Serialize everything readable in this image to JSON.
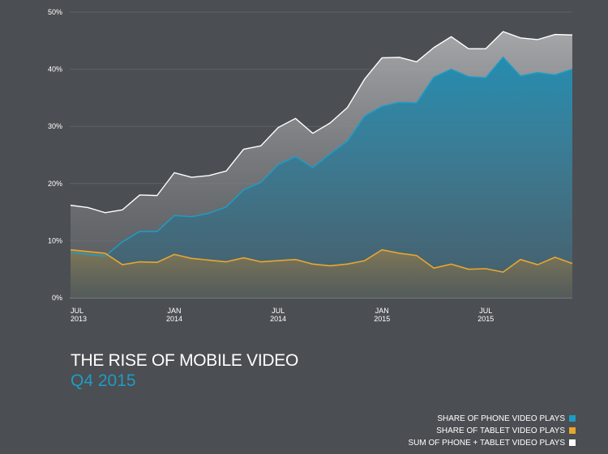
{
  "chart_data": {
    "type": "area",
    "title": "THE RISE OF MOBILE VIDEO",
    "subtitle": "Q4 2015",
    "ylim": [
      0,
      50
    ],
    "y_ticks": [
      "0%",
      "10%",
      "20%",
      "30%",
      "40%",
      "50%"
    ],
    "x_ticks": [
      {
        "month": "JUL",
        "year": "2013"
      },
      {
        "month": "JAN",
        "year": "2014"
      },
      {
        "month": "JUL",
        "year": "2014"
      },
      {
        "month": "JAN",
        "year": "2015"
      },
      {
        "month": "JUL",
        "year": "2015"
      }
    ],
    "x_tick_positions": [
      0,
      6,
      12,
      18,
      24
    ],
    "x_max": 29,
    "grid": true,
    "legend_position": "bottom-right",
    "series": [
      {
        "name": "SHARE OF PHONE VIDEO PLAYS",
        "color": "#1f9bc4",
        "values": [
          8.0,
          7.6,
          7.3,
          9.8,
          11.6,
          11.6,
          14.4,
          14.2,
          14.8,
          15.9,
          18.9,
          20.2,
          23.3,
          24.7,
          22.8,
          25.2,
          27.4,
          31.8,
          33.5,
          34.2,
          34.1,
          38.6,
          40.0,
          38.7,
          38.5,
          42.1,
          38.8,
          39.4,
          39.0,
          40.0
        ]
      },
      {
        "name": "SHARE OF TABLET VIDEO PLAYS",
        "color": "#e8a630",
        "values": [
          8.4,
          8.1,
          7.8,
          5.8,
          6.3,
          6.2,
          7.6,
          6.9,
          6.6,
          6.3,
          7.0,
          6.3,
          6.5,
          6.7,
          5.9,
          5.6,
          5.9,
          6.5,
          8.4,
          7.8,
          7.4,
          5.2,
          5.9,
          5.0,
          5.1,
          4.5,
          6.7,
          5.8,
          7.1,
          6.0
        ]
      },
      {
        "name": "SUM OF PHONE + TABLET VIDEO PLAYS",
        "color": "#ffffff",
        "values": [
          16.2,
          15.8,
          14.9,
          15.4,
          18.0,
          17.9,
          21.9,
          21.1,
          21.4,
          22.2,
          26.0,
          26.6,
          29.8,
          31.4,
          28.8,
          30.6,
          33.3,
          38.3,
          42.0,
          42.1,
          41.3,
          43.8,
          45.7,
          43.6,
          43.6,
          46.6,
          45.5,
          45.2,
          46.1,
          46.0
        ]
      }
    ]
  }
}
